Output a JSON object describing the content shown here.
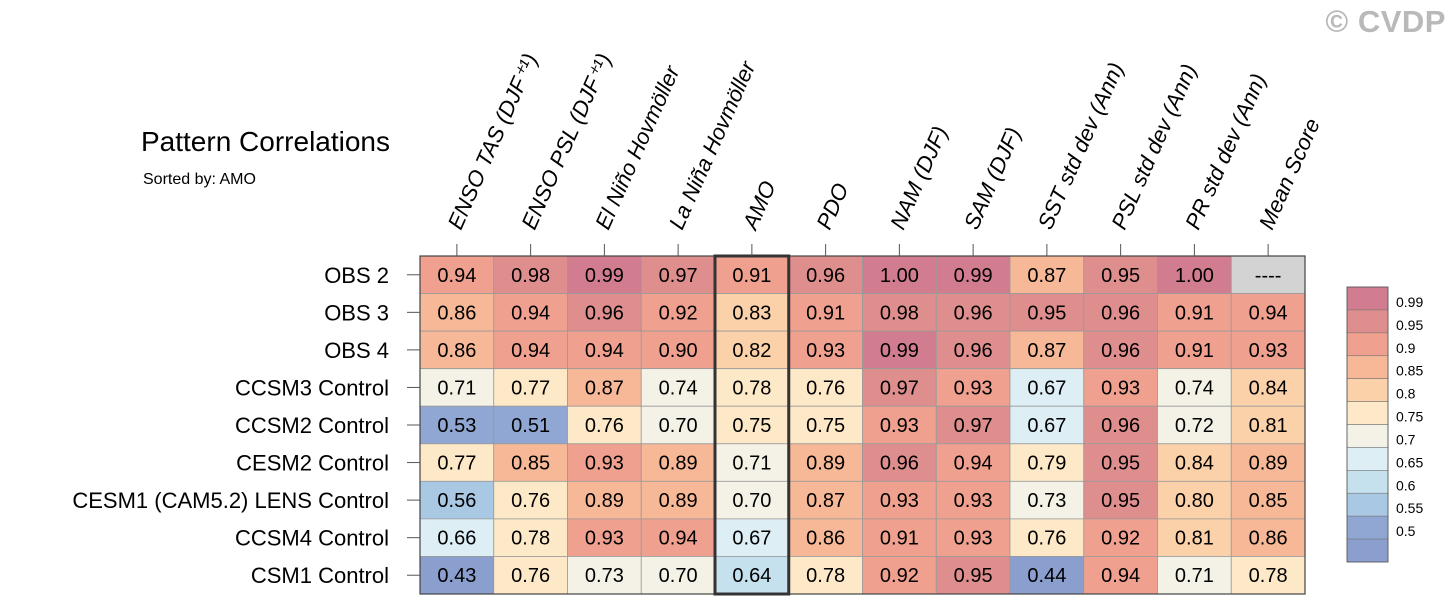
{
  "watermark": "© CVDP",
  "chart_data": {
    "type": "heatmap",
    "title": "Pattern Correlations",
    "subtitle": "Sorted by: AMO",
    "columns": [
      "ENSO TAS (DJF⁺¹)",
      "ENSO PSL (DJF⁺¹)",
      "El Niño Hovmöller",
      "La Niña Hovmöller",
      "AMO",
      "PDO",
      "NAM (DJF)",
      "SAM (DJF)",
      "SST std dev (Ann)",
      "PSL std dev (Ann)",
      "PR std dev (Ann)",
      "Mean Score"
    ],
    "rows": [
      "OBS 2",
      "OBS 3",
      "OBS 4",
      "CCSM3 Control",
      "CCSM2 Control",
      "CESM2 Control",
      "CESM1 (CAM5.2) LENS Control",
      "CCSM4 Control",
      "CSM1 Control"
    ],
    "values": [
      [
        "0.94",
        "0.98",
        "0.99",
        "0.97",
        "0.91",
        "0.96",
        "1.00",
        "0.99",
        "0.87",
        "0.95",
        "1.00",
        "----"
      ],
      [
        "0.86",
        "0.94",
        "0.96",
        "0.92",
        "0.83",
        "0.91",
        "0.98",
        "0.96",
        "0.95",
        "0.96",
        "0.91",
        "0.94"
      ],
      [
        "0.86",
        "0.94",
        "0.94",
        "0.90",
        "0.82",
        "0.93",
        "0.99",
        "0.96",
        "0.87",
        "0.96",
        "0.91",
        "0.93"
      ],
      [
        "0.71",
        "0.77",
        "0.87",
        "0.74",
        "0.78",
        "0.76",
        "0.97",
        "0.93",
        "0.67",
        "0.93",
        "0.74",
        "0.84"
      ],
      [
        "0.53",
        "0.51",
        "0.76",
        "0.70",
        "0.75",
        "0.75",
        "0.93",
        "0.97",
        "0.67",
        "0.96",
        "0.72",
        "0.81"
      ],
      [
        "0.77",
        "0.85",
        "0.93",
        "0.89",
        "0.71",
        "0.89",
        "0.96",
        "0.94",
        "0.79",
        "0.95",
        "0.84",
        "0.89"
      ],
      [
        "0.56",
        "0.76",
        "0.89",
        "0.89",
        "0.70",
        "0.87",
        "0.93",
        "0.93",
        "0.73",
        "0.95",
        "0.80",
        "0.85"
      ],
      [
        "0.66",
        "0.78",
        "0.93",
        "0.94",
        "0.67",
        "0.86",
        "0.91",
        "0.93",
        "0.76",
        "0.92",
        "0.81",
        "0.86"
      ],
      [
        "0.43",
        "0.76",
        "0.73",
        "0.70",
        "0.64",
        "0.78",
        "0.92",
        "0.95",
        "0.44",
        "0.94",
        "0.71",
        "0.78"
      ]
    ],
    "highlight_column": "AMO",
    "missing_color": "#d3d3d3",
    "colorbar": {
      "levels": [
        "0.99",
        "0.95",
        "0.9",
        "0.85",
        "0.8",
        "0.75",
        "0.7",
        "0.65",
        "0.6",
        "0.55",
        "0.5"
      ],
      "colors": [
        "#d27c8f",
        "#df8e8e",
        "#f0a08f",
        "#f6b896",
        "#fbd1a9",
        "#fde9c8",
        "#f4f2e6",
        "#ddeef5",
        "#c6e1ee",
        "#a9c8e4",
        "#8fa7d2",
        "#8b9fcf"
      ]
    }
  }
}
